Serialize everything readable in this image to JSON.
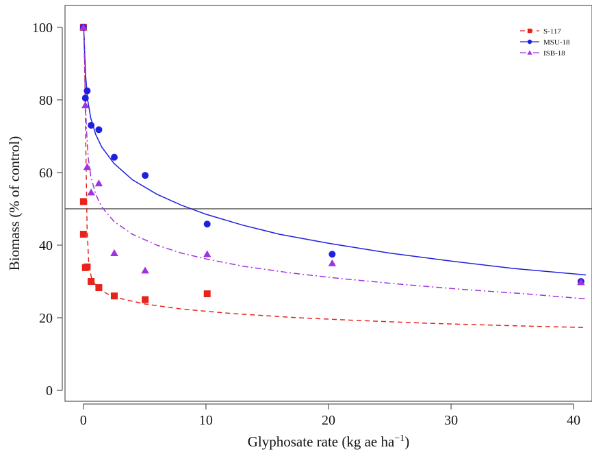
{
  "chart_data": {
    "type": "scatter",
    "title": "",
    "xlabel": "Glyphosate rate (kg ae ha",
    "xlabel_superscript": "−1",
    "xlabel_suffix": ")",
    "ylabel": "Biomass (% of control)",
    "xlim": [
      -1.5,
      41.5
    ],
    "ylim": [
      -3,
      106
    ],
    "xticks": [
      0,
      10,
      20,
      30,
      40
    ],
    "yticks": [
      0,
      20,
      40,
      60,
      80,
      100
    ],
    "reference_line_y": 50,
    "grid": false,
    "legend_position": "top-right",
    "series": [
      {
        "name": "S-117",
        "color": "#e8231d",
        "marker": "square",
        "line_style": "dashed",
        "points": [
          {
            "x": 0,
            "y": 100
          },
          {
            "x": 0,
            "y": 52
          },
          {
            "x": 0,
            "y": 43
          },
          {
            "x": 0.16,
            "y": 33.8
          },
          {
            "x": 0.31,
            "y": 34
          },
          {
            "x": 0.63,
            "y": 30
          },
          {
            "x": 1.26,
            "y": 28.3
          },
          {
            "x": 2.52,
            "y": 26
          },
          {
            "x": 5.04,
            "y": 25
          },
          {
            "x": 10.1,
            "y": 26.6
          }
        ],
        "fit": [
          {
            "x": 0.02,
            "y": 100
          },
          {
            "x": 0.08,
            "y": 96
          },
          {
            "x": 0.15,
            "y": 80
          },
          {
            "x": 0.22,
            "y": 62
          },
          {
            "x": 0.3,
            "y": 45
          },
          {
            "x": 0.45,
            "y": 34
          },
          {
            "x": 0.7,
            "y": 30.5
          },
          {
            "x": 1.2,
            "y": 28
          },
          {
            "x": 2,
            "y": 26.5
          },
          {
            "x": 3,
            "y": 25.3
          },
          {
            "x": 5,
            "y": 23.8
          },
          {
            "x": 8,
            "y": 22.4
          },
          {
            "x": 12,
            "y": 21.2
          },
          {
            "x": 17,
            "y": 20.1
          },
          {
            "x": 22,
            "y": 19.3
          },
          {
            "x": 28,
            "y": 18.5
          },
          {
            "x": 34,
            "y": 17.9
          },
          {
            "x": 41,
            "y": 17.3
          }
        ]
      },
      {
        "name": "MSU-18",
        "color": "#1f1fe0",
        "marker": "circle",
        "line_style": "solid",
        "points": [
          {
            "x": 0,
            "y": 100
          },
          {
            "x": 0.16,
            "y": 80.5
          },
          {
            "x": 0.31,
            "y": 82.5
          },
          {
            "x": 0.63,
            "y": 73
          },
          {
            "x": 1.26,
            "y": 71.8
          },
          {
            "x": 2.52,
            "y": 64.2
          },
          {
            "x": 5.04,
            "y": 59.2
          },
          {
            "x": 10.1,
            "y": 45.8
          },
          {
            "x": 20.3,
            "y": 37.5
          },
          {
            "x": 40.6,
            "y": 30
          }
        ],
        "fit": [
          {
            "x": 0.02,
            "y": 100
          },
          {
            "x": 0.1,
            "y": 93
          },
          {
            "x": 0.2,
            "y": 86
          },
          {
            "x": 0.35,
            "y": 80
          },
          {
            "x": 0.6,
            "y": 75
          },
          {
            "x": 1,
            "y": 70.5
          },
          {
            "x": 1.5,
            "y": 67
          },
          {
            "x": 2.5,
            "y": 62.5
          },
          {
            "x": 4,
            "y": 58
          },
          {
            "x": 6,
            "y": 54
          },
          {
            "x": 8,
            "y": 51
          },
          {
            "x": 10,
            "y": 48.5
          },
          {
            "x": 13,
            "y": 45.5
          },
          {
            "x": 16,
            "y": 43
          },
          {
            "x": 20,
            "y": 40.5
          },
          {
            "x": 25,
            "y": 37.8
          },
          {
            "x": 30,
            "y": 35.6
          },
          {
            "x": 35,
            "y": 33.6
          },
          {
            "x": 41,
            "y": 31.8
          }
        ]
      },
      {
        "name": "ISB-18",
        "color": "#a033e0",
        "marker": "triangle",
        "line_style": "dashdot",
        "points": [
          {
            "x": 0,
            "y": 100
          },
          {
            "x": 0.16,
            "y": 78.5
          },
          {
            "x": 0.31,
            "y": 61.5
          },
          {
            "x": 0.63,
            "y": 54.5
          },
          {
            "x": 1.26,
            "y": 57
          },
          {
            "x": 2.52,
            "y": 37.8
          },
          {
            "x": 5.04,
            "y": 33
          },
          {
            "x": 10.1,
            "y": 37.5
          },
          {
            "x": 20.3,
            "y": 35
          },
          {
            "x": 40.6,
            "y": 29.8
          }
        ],
        "fit": [
          {
            "x": 0.02,
            "y": 100
          },
          {
            "x": 0.08,
            "y": 92
          },
          {
            "x": 0.15,
            "y": 82
          },
          {
            "x": 0.25,
            "y": 72
          },
          {
            "x": 0.4,
            "y": 64
          },
          {
            "x": 0.6,
            "y": 59
          },
          {
            "x": 1,
            "y": 54
          },
          {
            "x": 1.5,
            "y": 50.5
          },
          {
            "x": 2.5,
            "y": 46.5
          },
          {
            "x": 4,
            "y": 43
          },
          {
            "x": 6,
            "y": 40
          },
          {
            "x": 8,
            "y": 37.8
          },
          {
            "x": 10,
            "y": 36.2
          },
          {
            "x": 13,
            "y": 34.2
          },
          {
            "x": 17,
            "y": 32.3
          },
          {
            "x": 21,
            "y": 30.8
          },
          {
            "x": 26,
            "y": 29.2
          },
          {
            "x": 31,
            "y": 27.8
          },
          {
            "x": 36,
            "y": 26.6
          },
          {
            "x": 41,
            "y": 25.2
          }
        ]
      }
    ]
  }
}
